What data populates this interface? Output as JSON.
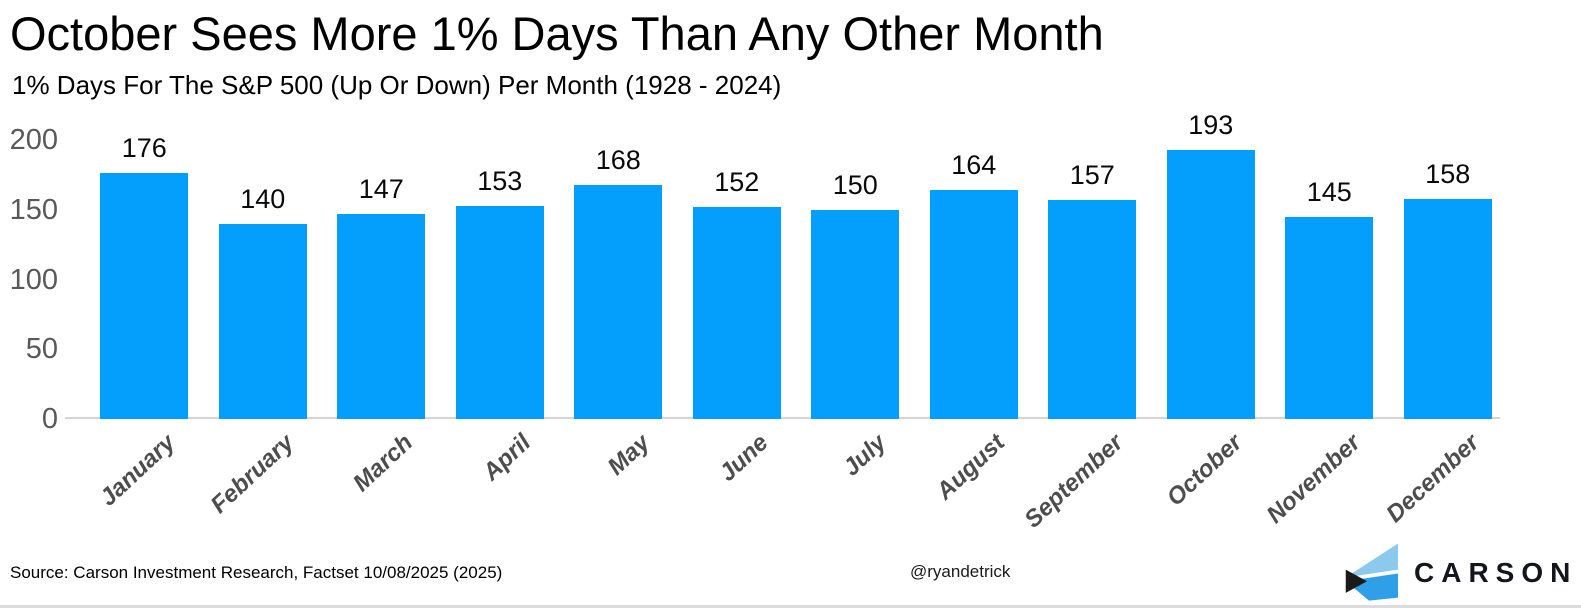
{
  "header": {
    "title": "October Sees More 1% Days Than Any Other Month",
    "subtitle": "1% Days For The S&P 500 (Up Or Down) Per Month (1928 - 2024)"
  },
  "chart_data": {
    "type": "bar",
    "title": "October Sees More 1% Days Than Any Other Month",
    "subtitle": "1% Days For The S&P 500 (Up Or Down) Per Month (1928 - 2024)",
    "categories": [
      "January",
      "February",
      "March",
      "April",
      "May",
      "June",
      "July",
      "August",
      "September",
      "October",
      "November",
      "December"
    ],
    "values": [
      176,
      140,
      147,
      153,
      168,
      152,
      150,
      164,
      157,
      193,
      145,
      158
    ],
    "xlabel": "",
    "ylabel": "",
    "ylim": [
      0,
      200
    ],
    "yticks": [
      0,
      50,
      100,
      150,
      200
    ],
    "grid": false,
    "legend": false,
    "value_labels": true,
    "bar_color": "#049ffc",
    "tick_color": "#595959",
    "month_label_color": "#4d4d4d"
  },
  "footer": {
    "source": "Source: Carson Investment Research, Factset 10/08/2025 (2025)",
    "handle": "@ryandetrick",
    "logo_text": "CARSON"
  },
  "colors": {
    "background": "#ffffff",
    "bar": "#049ffc",
    "axis_line": "#d4d4d4",
    "logo_light_blue": "#8cc9ef",
    "logo_blue": "#2f9fe8",
    "logo_dark": "#1a1a1a"
  }
}
